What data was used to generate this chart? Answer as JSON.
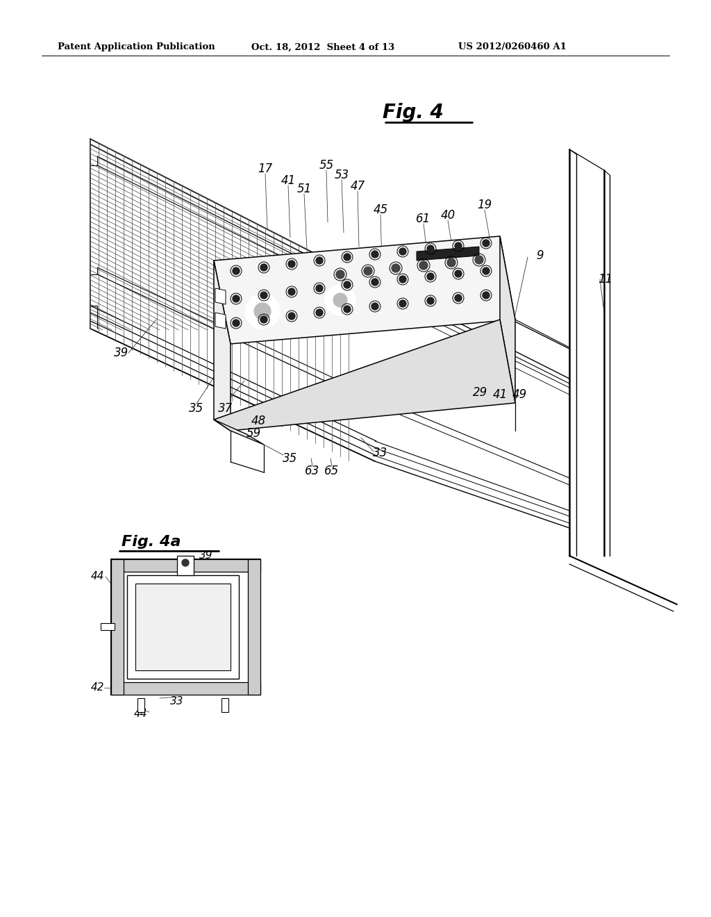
{
  "background_color": "#ffffff",
  "header_left": "Patent Application Publication",
  "header_center": "Oct. 18, 2012  Sheet 4 of 13",
  "header_right": "US 2012/0260460 A1",
  "fig4_title": "Fig. 4",
  "fig4a_title": "Fig. 4a",
  "header_fontsize": 9.5,
  "label_fontsize": 11
}
